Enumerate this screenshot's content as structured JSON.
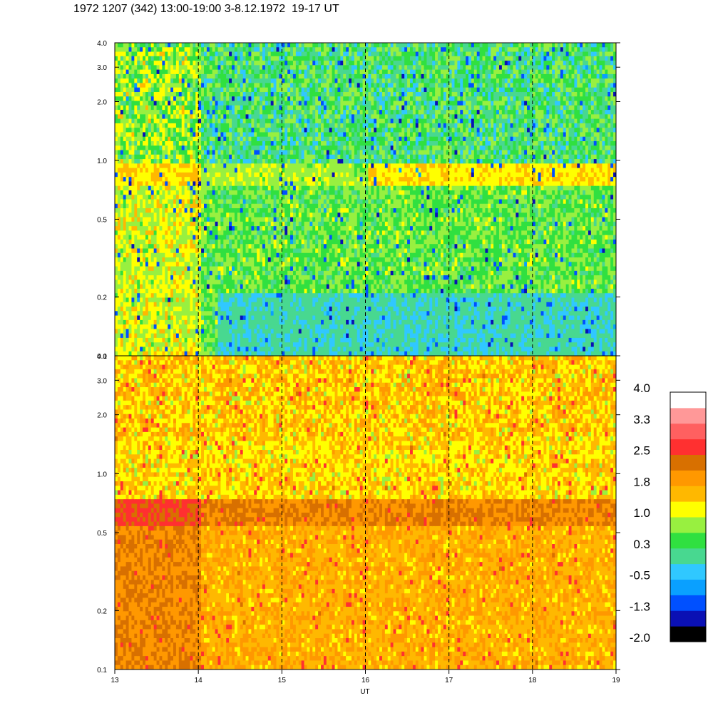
{
  "title": "1972 1207 (342) 13:00-19:00 3-8.12.1972  19-17 UT",
  "colors": {
    "levels": [
      "#000000",
      "#0a10b4",
      "#0050ff",
      "#0aa0ff",
      "#30c8ff",
      "#48d890",
      "#30e040",
      "#98f040",
      "#ffff00",
      "#ffb800",
      "#ff9800",
      "#d87000",
      "#ff3030",
      "#ff6060",
      "#ff9898",
      "#ffffff"
    ]
  },
  "chart_data": [
    {
      "type": "heatmap",
      "panel": "upper",
      "xlabel": "UT",
      "ylabel": "",
      "xlim": [
        13,
        19
      ],
      "ylim": [
        0.1,
        4.0
      ],
      "y_scale": "log",
      "x_ticks": [
        "13",
        "14",
        "15",
        "16",
        "17",
        "18",
        "19"
      ],
      "y_ticks": [
        "0.1",
        "0.2",
        "0.5",
        "1.0",
        "2.0",
        "3.0",
        "4.0"
      ],
      "hour_markers": [
        14,
        15,
        16,
        17,
        18
      ],
      "dominant_levels": "0.3 to -1.3 (blue-green), band near 1.0-1.3 at 1.0"
    },
    {
      "type": "heatmap",
      "panel": "lower",
      "xlabel": "UT",
      "ylabel": "",
      "xlim": [
        13,
        19
      ],
      "ylim": [
        0.1,
        4.0
      ],
      "y_scale": "log",
      "x_ticks": [
        "13",
        "14",
        "15",
        "16",
        "17",
        "18",
        "19"
      ],
      "y_ticks": [
        "0.1",
        "0.2",
        "0.5",
        "1.0",
        "2.0",
        "3.0",
        "4.0"
      ],
      "hour_markers": [
        14,
        15,
        16,
        17,
        18
      ],
      "dominant_levels": "1.0 to 1.8 (yellow-orange), band near 0.75-0.9 at 1.8"
    }
  ],
  "colorbar": {
    "labels": [
      "4.0",
      "3.3",
      "2.5",
      "1.8",
      "1.0",
      "0.3",
      "-0.5",
      "-1.3",
      "-2.0"
    ]
  },
  "axis": {
    "x_title": "UT"
  }
}
